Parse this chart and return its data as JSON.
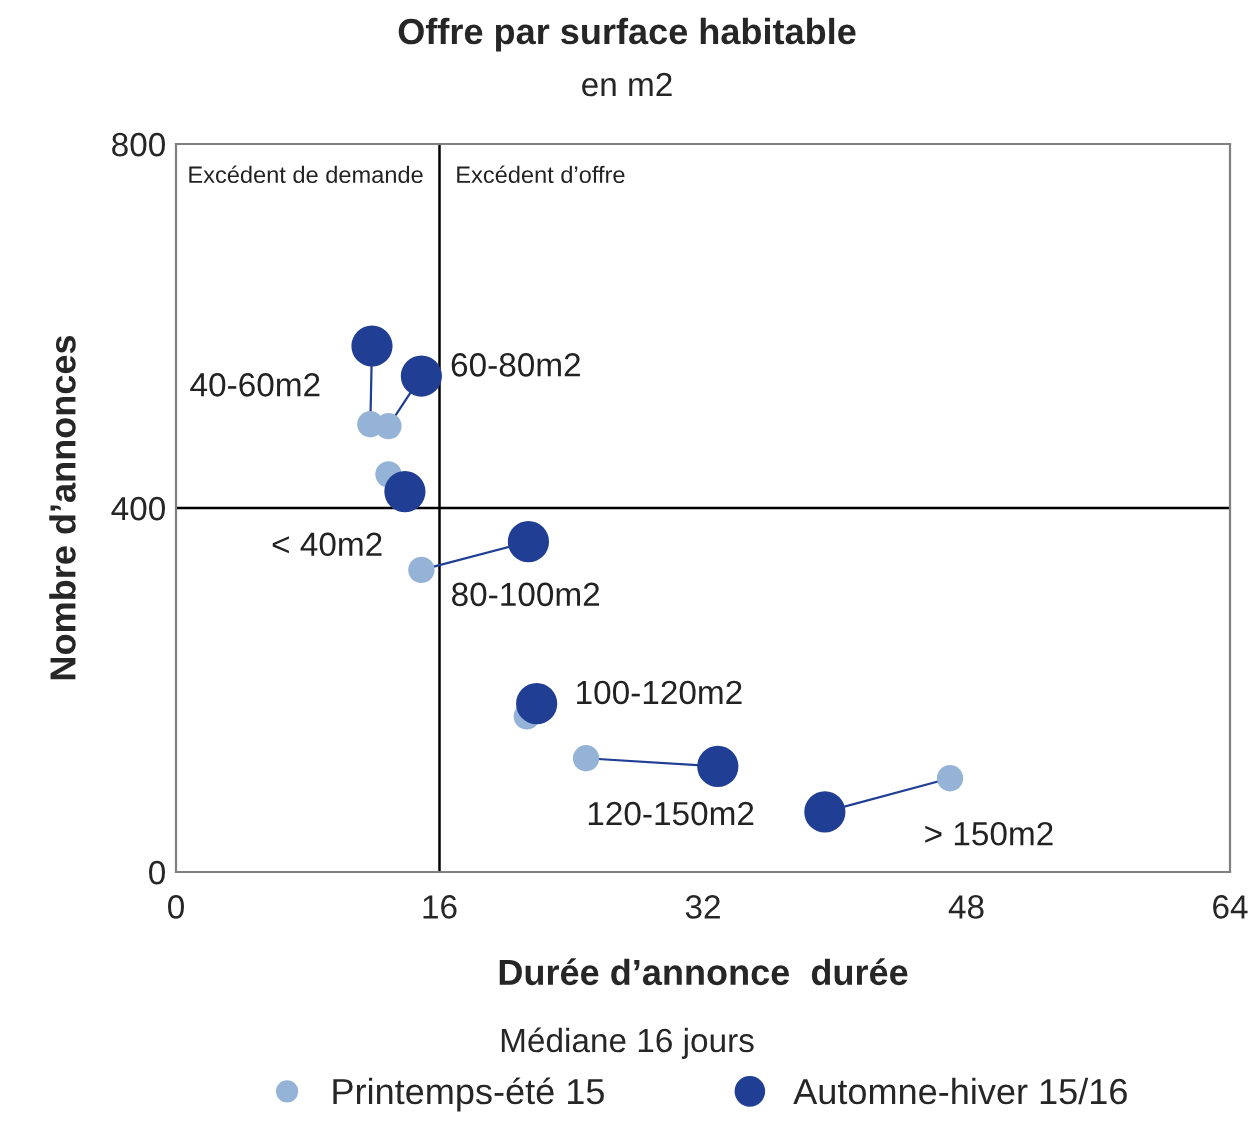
{
  "chart_data": {
    "type": "scatter",
    "title": "Offre par surface habitable",
    "subtitle": "en m2",
    "xlabel": "Durée d’annonce  durée",
    "xlim": [
      0,
      64
    ],
    "xticks": [
      0,
      16,
      32,
      48,
      64
    ],
    "ylim": [
      0,
      800
    ],
    "yticks": [
      0,
      400,
      800
    ],
    "ylabel": "Nombre d’annonces",
    "grid": false,
    "legend": "bottom",
    "marker": "circle",
    "series": [
      {
        "name": "Printemps-été 15",
        "color": "#95b3d7",
        "x": [
          12.9,
          11.8,
          12.9,
          14.9,
          21.3,
          24.9,
          47.0
        ],
        "values": [
          437,
          492,
          490,
          332,
          171,
          125,
          103
        ]
      },
      {
        "name": "Automne-hiver 15/16",
        "color": "#203f94",
        "x": [
          13.9,
          11.9,
          14.9,
          21.4,
          21.9,
          32.9,
          39.4
        ],
        "values": [
          418,
          578,
          545,
          363,
          185,
          116,
          66
        ]
      }
    ],
    "ref_lines": [
      {
        "axis": "x",
        "value": 16,
        "color": "#000000"
      },
      {
        "axis": "y",
        "value": 400,
        "color": "#000000"
      }
    ],
    "annotations": [
      {
        "text": "< 40m2",
        "x": 13.9,
        "y": 418
      },
      {
        "text": "40-60m2",
        "x": 11.9,
        "y": 578
      },
      {
        "text": "60-80m2",
        "x": 14.9,
        "y": 545
      },
      {
        "text": "80-100m2",
        "x": 21.4,
        "y": 363
      },
      {
        "text": "100-120m2",
        "x": 21.9,
        "y": 185
      },
      {
        "text": "120-150m2",
        "x": 32.9,
        "y": 116
      },
      {
        "text": "> 150m2",
        "x": 47.0,
        "y": 103
      },
      "Excédent de demande",
      "Excédent d’offre",
      "Médiane 16 jours"
    ]
  }
}
